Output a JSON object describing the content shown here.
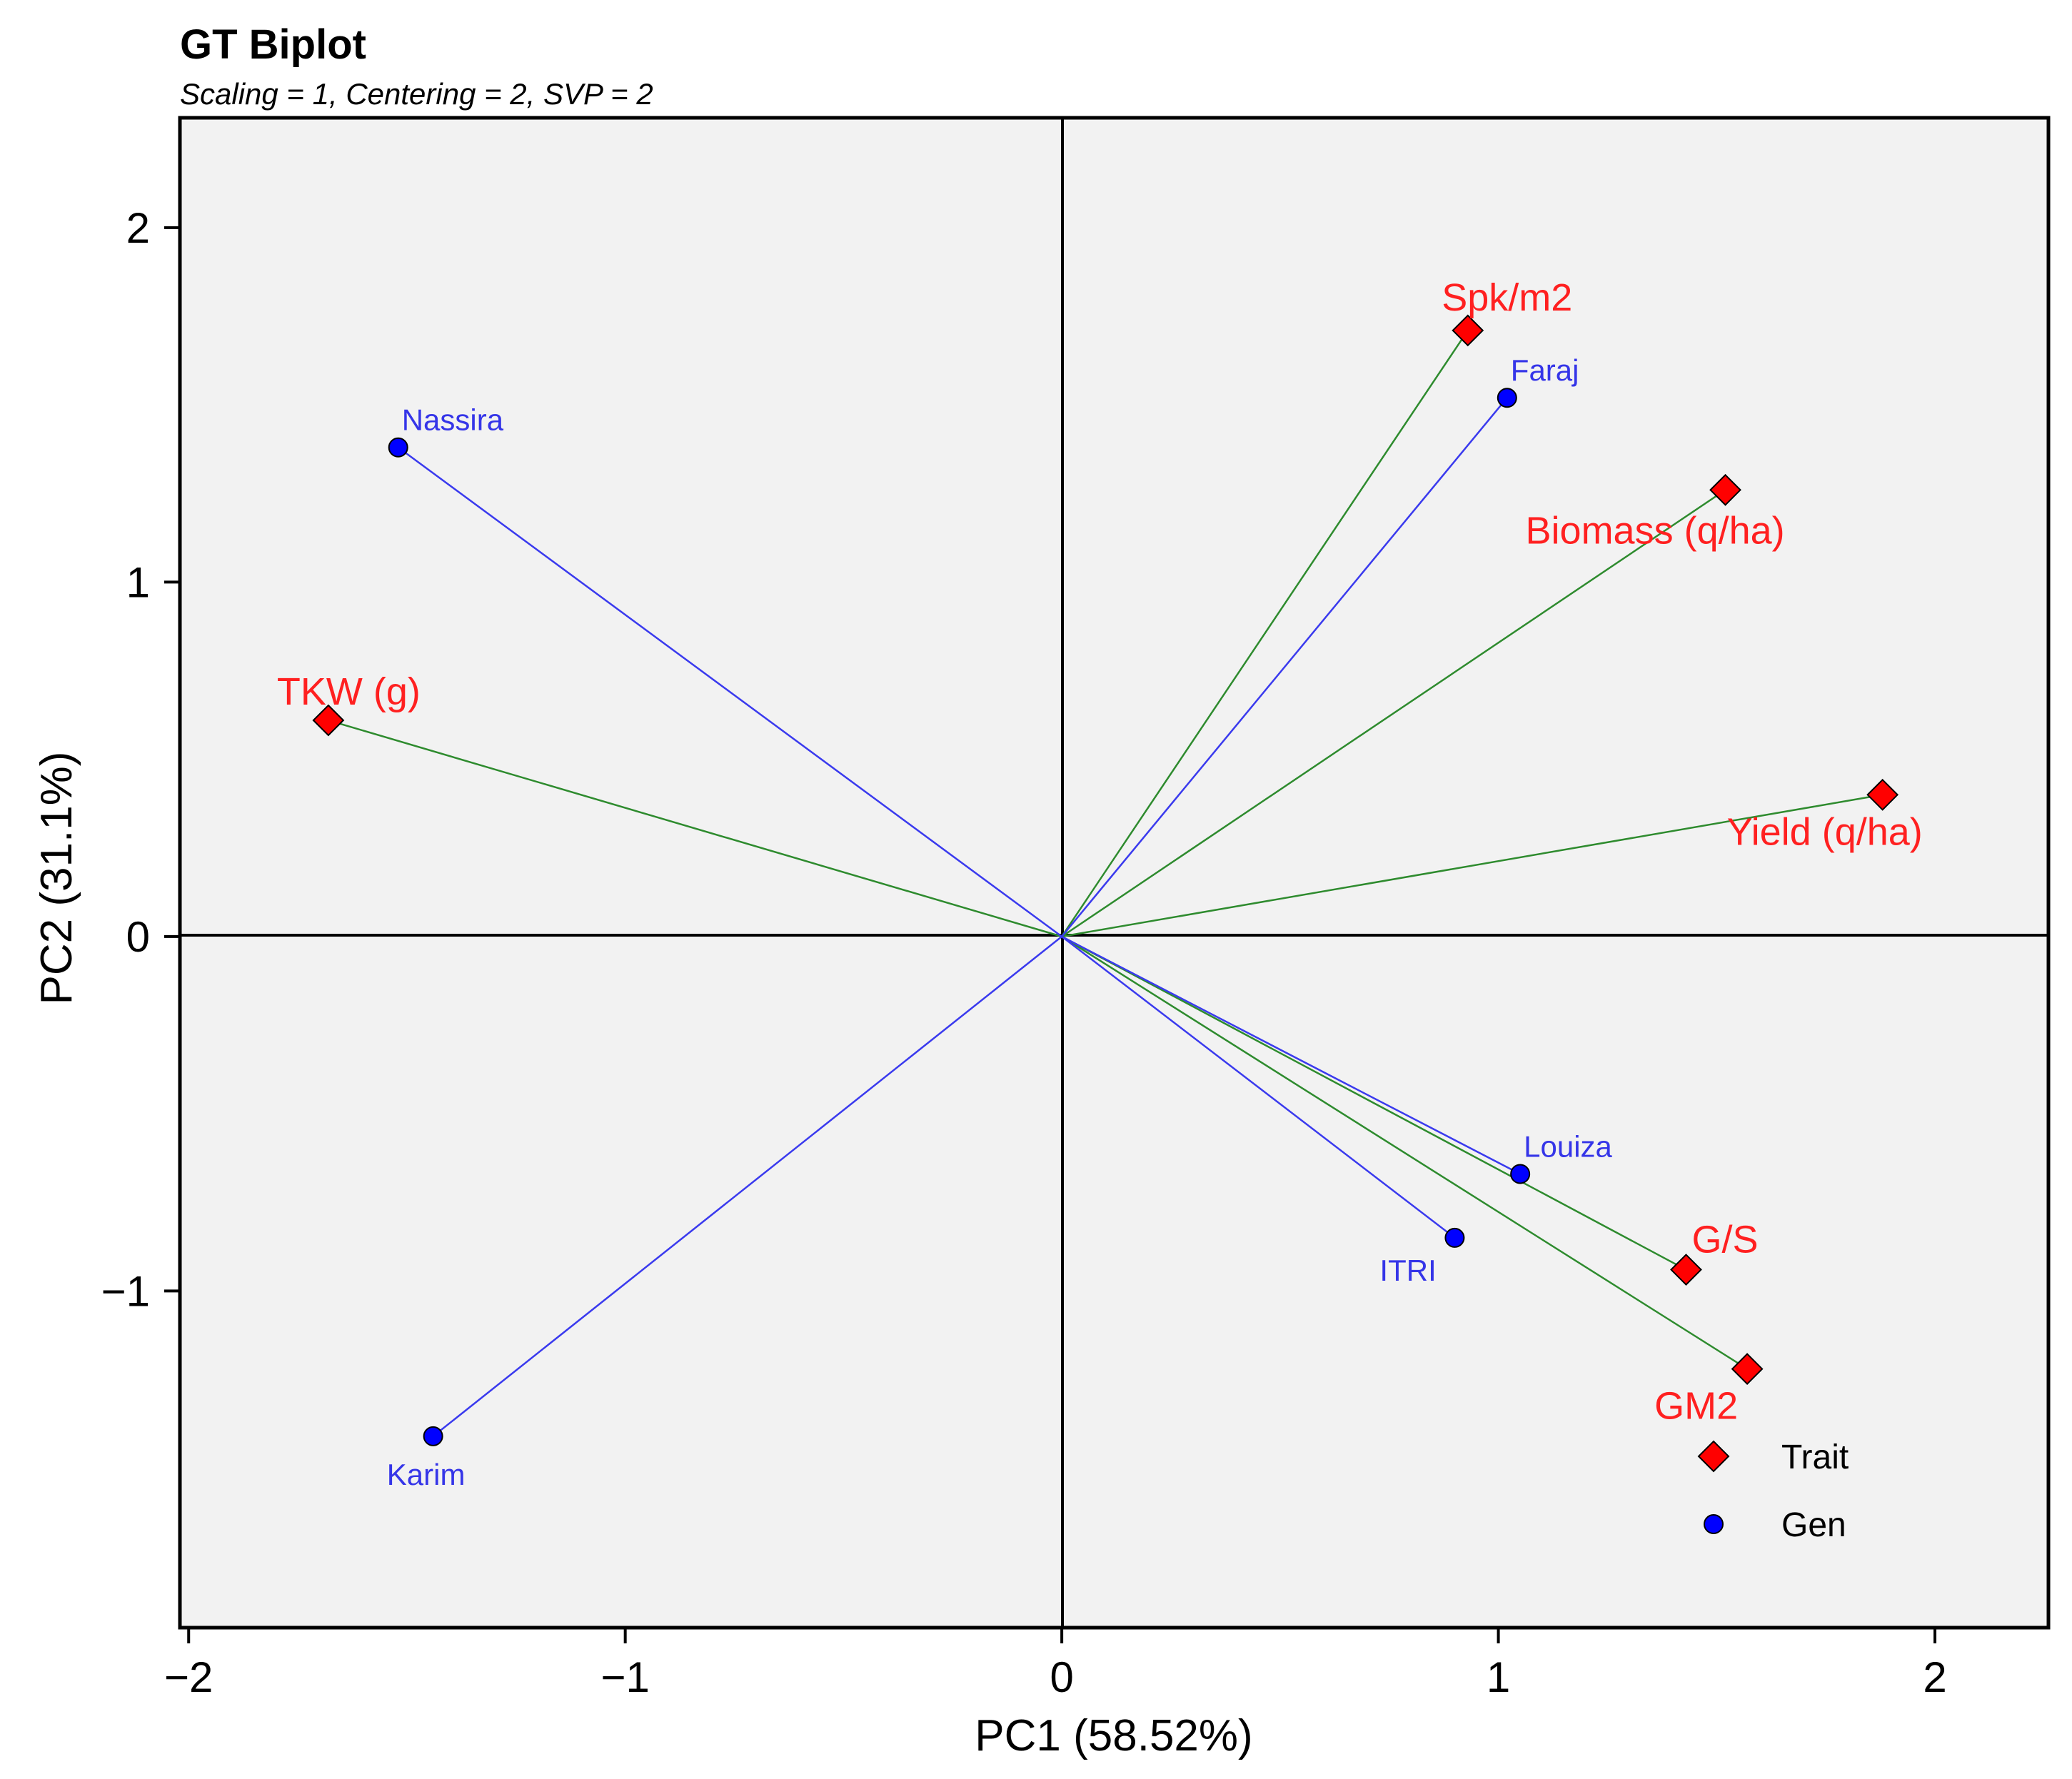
{
  "chart_data": {
    "type": "scatter",
    "subtype": "biplot",
    "title": "GT Biplot",
    "subtitle": "Scaling = 1, Centering = 2, SVP = 2",
    "xlabel": "PC1 (58.52%)",
    "ylabel": "PC2 (31.1%)",
    "xlim": [
      -2.02,
      2.26
    ],
    "ylim": [
      -1.95,
      2.31
    ],
    "x_ticks": [
      -2,
      -1,
      0,
      1,
      2
    ],
    "x_tick_labels": [
      "−2",
      "−1",
      "0",
      "1",
      "2"
    ],
    "y_ticks": [
      -1,
      0,
      1,
      2
    ],
    "y_tick_labels": [
      "−1",
      "0",
      "1",
      "2"
    ],
    "series": [
      {
        "name": "Trait",
        "marker": "diamond",
        "color": "#ff0000",
        "line_color": "#2e8b2e",
        "label_color": "#ff2020",
        "points": [
          {
            "label": "Spk/m2",
            "x": 0.93,
            "y": 1.71,
            "label_pos": "above"
          },
          {
            "label": "Biomass (q/ha)",
            "x": 1.52,
            "y": 1.26,
            "label_pos": "below-left"
          },
          {
            "label": "Yield (q/ha)",
            "x": 1.88,
            "y": 0.4,
            "label_pos": "below"
          },
          {
            "label": "TKW (g)",
            "x": -1.68,
            "y": 0.61,
            "label_pos": "above-right"
          },
          {
            "label": "G/S",
            "x": 1.43,
            "y": -0.94,
            "label_pos": "above-right"
          },
          {
            "label": "GM2",
            "x": 1.57,
            "y": -1.22,
            "label_pos": "below-left"
          }
        ]
      },
      {
        "name": "Gen",
        "marker": "circle",
        "color": "#0000ff",
        "line_color": "#3a3aee",
        "label_color": "#3535e8",
        "points": [
          {
            "label": "Faraj",
            "x": 1.02,
            "y": 1.52,
            "label_pos": "above-right"
          },
          {
            "label": "Nassira",
            "x": -1.52,
            "y": 1.38,
            "label_pos": "above-right"
          },
          {
            "label": "Louiza",
            "x": 1.05,
            "y": -0.67,
            "label_pos": "above-right"
          },
          {
            "label": "ITRI",
            "x": 0.9,
            "y": -0.85,
            "label_pos": "below-left"
          },
          {
            "label": "Karim",
            "x": -1.44,
            "y": -1.41,
            "label_pos": "below"
          }
        ]
      }
    ],
    "legend": {
      "position": "bottom-right",
      "entries": [
        {
          "label": "Trait",
          "marker": "diamond",
          "color": "#ff0000"
        },
        {
          "label": "Gen",
          "marker": "circle",
          "color": "#0000ff"
        }
      ]
    },
    "origin_lines": true,
    "grid": false,
    "panel_background": "#f2f2f2"
  }
}
